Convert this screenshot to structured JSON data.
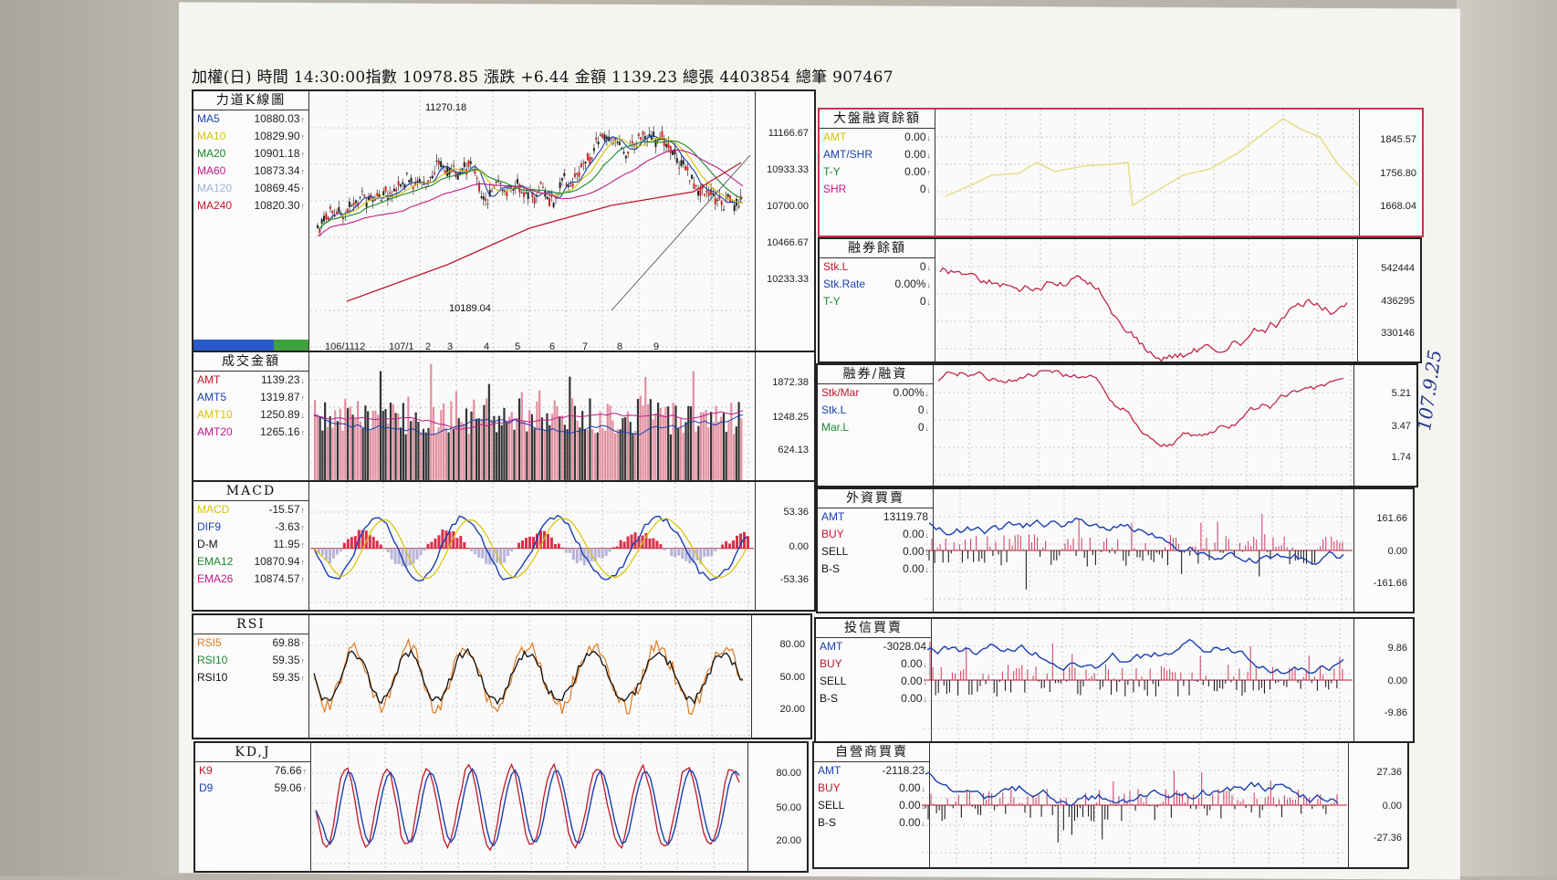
{
  "header": {
    "text": "加權(日) 時間 14:30:00指數 10978.85 漲跌 +6.44  金額 1139.23 總張 4403854 總筆 907467"
  },
  "kline": {
    "title": "力道K線圖",
    "rows": [
      {
        "k": "MA5",
        "v": "10880.03",
        "a": "↑",
        "c": "#1a3fb0"
      },
      {
        "k": "MA10",
        "v": "10829.90",
        "a": "↑",
        "c": "#d7c400"
      },
      {
        "k": "MA20",
        "v": "10901.18",
        "a": "↑",
        "c": "#1a8a2a"
      },
      {
        "k": "MA60",
        "v": "10873.34",
        "a": "↑",
        "c": "#c01a8a"
      },
      {
        "k": "MA120",
        "v": "10869.45",
        "a": "↑",
        "c": "#9fb3d8"
      },
      {
        "k": "MA240",
        "v": "10820.30",
        "a": "↑",
        "c": "#c0182a"
      }
    ],
    "ticks": [
      "11166.67",
      "10933.33",
      "10700.00",
      "10466.67",
      "10233.33"
    ],
    "xlabels": [
      "106/11",
      "12",
      "107/1",
      "2",
      "3",
      "4",
      "5",
      "6",
      "7",
      "8",
      "9"
    ],
    "high": "11270.18",
    "low": "10189.04"
  },
  "volume": {
    "title": "成交金額",
    "rows": [
      {
        "k": "AMT",
        "v": "1139.23",
        "a": "↓",
        "c": "#c0182a"
      },
      {
        "k": "AMT5",
        "v": "1319.87",
        "a": "↑",
        "c": "#1a3fb0"
      },
      {
        "k": "AMT10",
        "v": "1250.89",
        "a": "↓",
        "c": "#d7c400"
      },
      {
        "k": "AMT20",
        "v": "1265.16",
        "a": "↑",
        "c": "#c01a8a"
      }
    ],
    "ticks": [
      "1872.38",
      "1248.25",
      "624.13"
    ]
  },
  "macd": {
    "title": "MACD",
    "rows": [
      {
        "k": "MACD",
        "v": "-15.57",
        "a": "↑",
        "c": "#d7c400"
      },
      {
        "k": "DIF9",
        "v": "-3.63",
        "a": "↑",
        "c": "#1a3fb0"
      },
      {
        "k": "D-M",
        "v": "11.95",
        "a": "↑",
        "c": "#111"
      },
      {
        "k": "EMA12",
        "v": "10870.94",
        "a": "↑",
        "c": "#1a8a2a"
      },
      {
        "k": "EMA26",
        "v": "10874.57",
        "a": "↑",
        "c": "#c01a8a"
      }
    ],
    "ticks": [
      "53.36",
      "0.00",
      "-53.36"
    ]
  },
  "rsi": {
    "title": "RSI",
    "rows": [
      {
        "k": "RSI5",
        "v": "69.88",
        "a": "↑",
        "c": "#e07a20"
      },
      {
        "k": "RSI10",
        "v": "59.35",
        "a": "↑",
        "c": "#1a8a2a"
      },
      {
        "k": "RSI10",
        "v": "59.35",
        "a": "↑",
        "c": "#111"
      }
    ],
    "ticks": [
      "80.00",
      "50.00",
      "20.00"
    ]
  },
  "kdj": {
    "title": "KD,J",
    "rows": [
      {
        "k": "K9",
        "v": "76.66",
        "a": "↑",
        "c": "#c0182a"
      },
      {
        "k": "D9",
        "v": "59.06",
        "a": "↑",
        "c": "#1a3fb0"
      }
    ],
    "ticks": [
      "80.00",
      "50.00",
      "20.00"
    ]
  },
  "margin": {
    "title": "大盤融資餘額",
    "rows": [
      {
        "k": "AMT",
        "v": "0.00",
        "a": "↓",
        "c": "#d7c400"
      },
      {
        "k": "AMT/SHR",
        "v": "0.00",
        "a": "↓",
        "c": "#1a3fb0"
      },
      {
        "k": "T-Y",
        "v": "0.00",
        "a": "↑",
        "c": "#1a8a2a"
      },
      {
        "k": "SHR",
        "v": "0",
        "a": "↓",
        "c": "#c01a8a"
      }
    ],
    "ticks": [
      "1845.57",
      "1756.80",
      "1668.04"
    ]
  },
  "short": {
    "title": "融券餘額",
    "rows": [
      {
        "k": "Stk.L",
        "v": "0",
        "a": "↓",
        "c": "#c0182a"
      },
      {
        "k": "Stk.Rate",
        "v": "0.00%",
        "a": "↓",
        "c": "#1a3fb0"
      },
      {
        "k": "T-Y",
        "v": "0",
        "a": "↓",
        "c": "#1a8a2a"
      }
    ],
    "ticks": [
      "542444",
      "436295",
      "330146"
    ]
  },
  "ratio": {
    "title": "融券/融資",
    "rows": [
      {
        "k": "Stk/Mar",
        "v": "0.00%",
        "a": "↓",
        "c": "#c0182a"
      },
      {
        "k": "Stk.L",
        "v": "0",
        "a": "↓",
        "c": "#1a3fb0"
      },
      {
        "k": "Mar.L",
        "v": "0",
        "a": "↓",
        "c": "#1a8a2a"
      }
    ],
    "ticks": [
      "5.21",
      "3.47",
      "1.74"
    ]
  },
  "foreign": {
    "title": "外資買賣",
    "rows": [
      {
        "k": "AMT",
        "v": "13119.78",
        "a": "",
        "c": "#1a3fb0"
      },
      {
        "k": "BUY",
        "v": "0.00",
        "a": "↓",
        "c": "#c0182a"
      },
      {
        "k": "SELL",
        "v": "0.00",
        "a": "↓",
        "c": "#111"
      },
      {
        "k": "B-S",
        "v": "0.00",
        "a": "↓",
        "c": "#111"
      }
    ],
    "ticks": [
      "161.66",
      "0.00",
      "-161.66"
    ]
  },
  "trust": {
    "title": "投信買賣",
    "rows": [
      {
        "k": "AMT",
        "v": "-3028.04",
        "a": "",
        "c": "#1a3fb0"
      },
      {
        "k": "BUY",
        "v": "0.00",
        "a": "↓",
        "c": "#c0182a"
      },
      {
        "k": "SELL",
        "v": "0.00",
        "a": "↓",
        "c": "#111"
      },
      {
        "k": "B-S",
        "v": "0.00",
        "a": "↓",
        "c": "#111"
      }
    ],
    "ticks": [
      "9.86",
      "0.00",
      "-9.86"
    ]
  },
  "dealer": {
    "title": "自營商買賣",
    "rows": [
      {
        "k": "AMT",
        "v": "-2118.23",
        "a": "",
        "c": "#1a3fb0"
      },
      {
        "k": "BUY",
        "v": "0.00",
        "a": "↓",
        "c": "#c0182a"
      },
      {
        "k": "SELL",
        "v": "0.00",
        "a": "↓",
        "c": "#111"
      },
      {
        "k": "B-S",
        "v": "0.00",
        "a": "↓",
        "c": "#111"
      }
    ],
    "ticks": [
      "27.36",
      "0.00",
      "-27.36"
    ]
  },
  "handwriting": "107.9.25"
}
